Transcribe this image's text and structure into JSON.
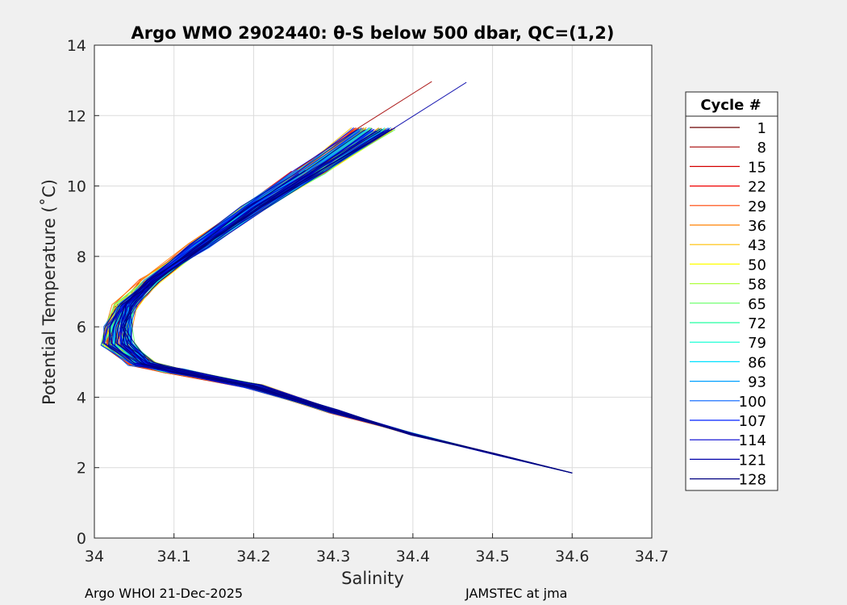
{
  "title": "Argo WMO 2902440: θ-S below 500 dbar,  QC=(1,2)",
  "footer": {
    "left": "Argo WHOI 21-Dec-2025",
    "right": "JAMSTEC at jma"
  },
  "chart_data": {
    "type": "line",
    "title": "Argo WMO 2902440: θ-S below 500 dbar,  QC=(1,2)",
    "xlabel": "Salinity",
    "ylabel": "Potential Temperature (˚C)",
    "xlim": [
      34,
      34.7
    ],
    "ylim": [
      0,
      14
    ],
    "xticks": [
      "34",
      "34.1",
      "34.2",
      "34.3",
      "34.4",
      "34.5",
      "34.6",
      "34.7"
    ],
    "yticks": [
      "0",
      "2",
      "4",
      "6",
      "8",
      "10",
      "12",
      "14"
    ],
    "grid": true,
    "legend_title": "Cycle #",
    "legend_position": "right",
    "series": [
      {
        "name": "1",
        "color": "#6b0000"
      },
      {
        "name": "8",
        "color": "#a30000"
      },
      {
        "name": "15",
        "color": "#d40000"
      },
      {
        "name": "22",
        "color": "#f00000"
      },
      {
        "name": "29",
        "color": "#ff4000"
      },
      {
        "name": "36",
        "color": "#ff8000"
      },
      {
        "name": "43",
        "color": "#ffbf00"
      },
      {
        "name": "50",
        "color": "#ffff00"
      },
      {
        "name": "58",
        "color": "#b0ff40"
      },
      {
        "name": "65",
        "color": "#60ff60"
      },
      {
        "name": "72",
        "color": "#20ffa0"
      },
      {
        "name": "79",
        "color": "#00ffd0"
      },
      {
        "name": "86",
        "color": "#00e0ff"
      },
      {
        "name": "93",
        "color": "#00a0ff"
      },
      {
        "name": "100",
        "color": "#0060ff"
      },
      {
        "name": "107",
        "color": "#0020ff"
      },
      {
        "name": "114",
        "color": "#0000d0"
      },
      {
        "name": "121",
        "color": "#0000a8"
      },
      {
        "name": "128",
        "color": "#000080"
      }
    ],
    "envelope": {
      "description_points": [
        [
          34.6,
          1.85
        ],
        [
          34.5,
          2.4
        ],
        [
          34.4,
          2.95
        ],
        [
          34.3,
          3.6
        ],
        [
          34.2,
          4.3
        ],
        [
          34.1,
          4.75
        ],
        [
          34.06,
          4.95
        ],
        [
          34.03,
          5.5
        ],
        [
          34.03,
          6.0
        ],
        [
          34.04,
          6.6
        ],
        [
          34.07,
          7.3
        ],
        [
          34.13,
          8.3
        ],
        [
          34.2,
          9.4
        ],
        [
          34.27,
          10.4
        ],
        [
          34.35,
          11.6
        ],
        [
          34.45,
          13.0
        ]
      ]
    }
  }
}
